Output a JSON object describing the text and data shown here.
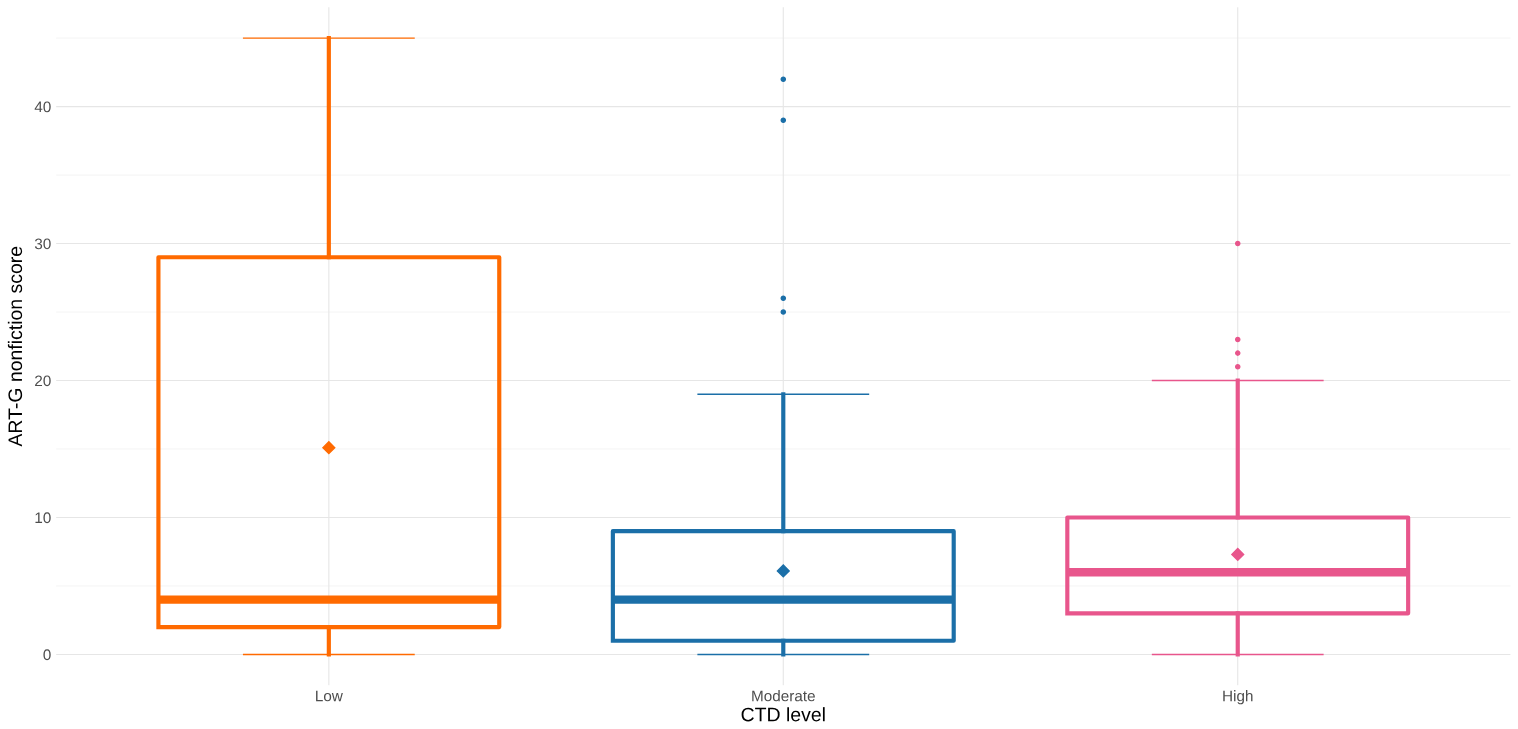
{
  "chart_data": {
    "type": "box",
    "xlabel": "CTD level",
    "ylabel": "ART-G nonfiction score",
    "categories": [
      "Low",
      "Moderate",
      "High"
    ],
    "colors": [
      "#ff6a00",
      "#1b6fa8",
      "#e8568c"
    ],
    "boxes": [
      {
        "low": 0,
        "q1": 2,
        "median": 4,
        "q3": 29,
        "high": 45,
        "mean": 15.1
      },
      {
        "low": 0,
        "q1": 1,
        "median": 4,
        "q3": 9,
        "high": 19,
        "mean": 6.1,
        "outliers": [
          25,
          26,
          39,
          42
        ]
      },
      {
        "low": 0,
        "q1": 3,
        "median": 6,
        "q3": 10,
        "high": 20,
        "mean": 7.3,
        "outliers": [
          21,
          22,
          23,
          30
        ]
      }
    ],
    "ylim": [
      -2.25,
      47.25
    ],
    "yticks": [
      0,
      10,
      20,
      30,
      40
    ],
    "grid": true,
    "marker": "diamond"
  }
}
